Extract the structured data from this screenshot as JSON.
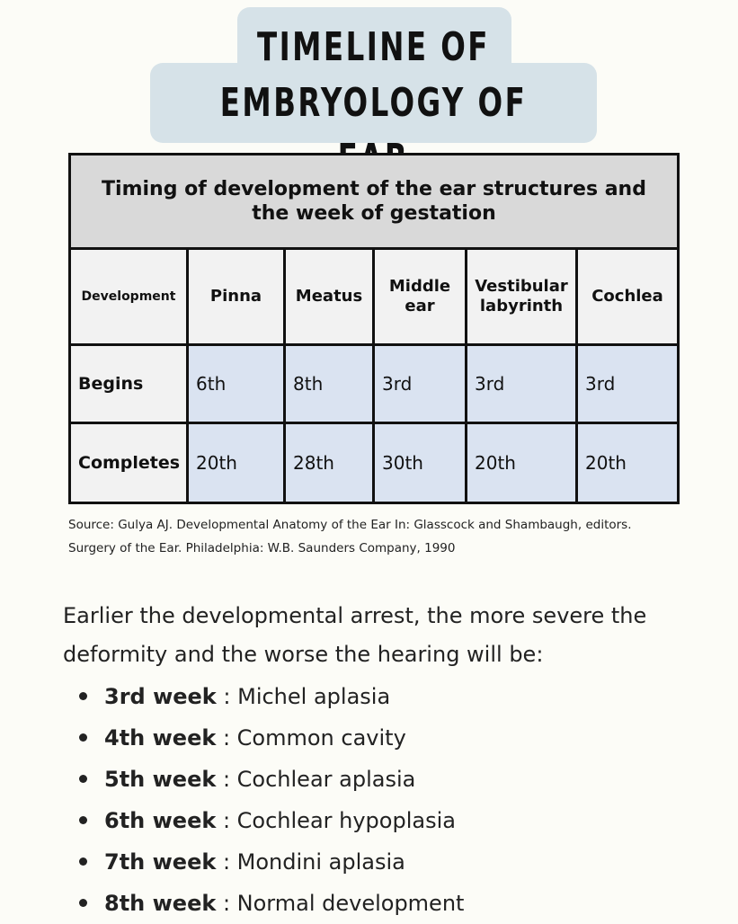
{
  "title": {
    "line1": "TIMELINE OF",
    "line2": "EMBRYOLOGY OF EAR"
  },
  "table": {
    "caption": "Timing of development of the ear structures and the week of gestation",
    "headers": [
      "Development",
      "Pinna",
      "Meatus",
      "Middle ear",
      "Vestibular labyrinth",
      "Cochlea"
    ],
    "rows": [
      {
        "label": "Begins",
        "values": [
          "6th",
          "8th",
          "3rd",
          "3rd",
          "3rd"
        ]
      },
      {
        "label": "Completes",
        "values": [
          "20th",
          "28th",
          "30th",
          "20th",
          "20th"
        ]
      }
    ]
  },
  "source": "Source: Gulya AJ. Developmental Anatomy of the Ear In: Glasscock and Shambaugh, editors. Surgery of the Ear. Philadelphia: W.B. Saunders Company, 1990",
  "paragraph": "Earlier the developmental arrest, the more severe the deformity and the worse the hearing will be:",
  "list": [
    {
      "week": "3rd week",
      "sep": " : ",
      "text": "Michel aplasia"
    },
    {
      "week": "4th week",
      "sep": " : ",
      "text": "Common cavity"
    },
    {
      "week": "5th week",
      "sep": " : ",
      "text": "Cochlear aplasia"
    },
    {
      "week": "6th week",
      "sep": " : ",
      "text": "Cochlear hypoplasia"
    },
    {
      "week": "7th week",
      "sep": " : ",
      "text": "Mondini aplasia"
    },
    {
      "week": "8th week",
      "sep": " : ",
      "text": "Normal development"
    }
  ],
  "colors": {
    "title_bg": "#d6e2e8",
    "caption_bg": "#d9d9d9",
    "header_bg": "#f2f2f2",
    "cell_bg": "#dae3f1",
    "page_bg": "#fcfcf7"
  }
}
